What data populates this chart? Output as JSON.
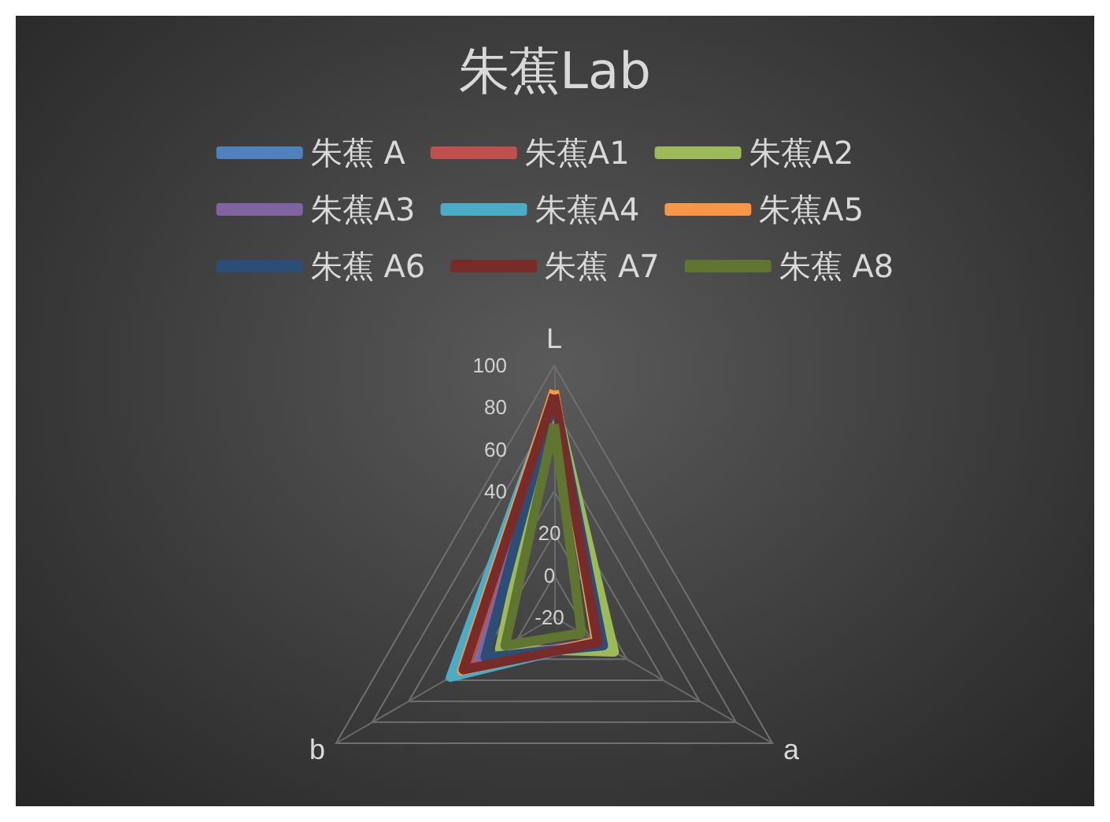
{
  "chart_data": {
    "type": "radar",
    "title": "朱蕉Lab",
    "categories": [
      "L",
      "a",
      "b"
    ],
    "ylim": [
      -20,
      100
    ],
    "yticks": [
      -20,
      0,
      20,
      40,
      60,
      80,
      100
    ],
    "legend": "top",
    "marker": "none",
    "grid": true,
    "series": [
      {
        "name": "朱蕉 A",
        "color": "#4f81bd",
        "values": [
          85,
          5,
          23
        ]
      },
      {
        "name": "朱蕉A1",
        "color": "#c0504d",
        "values": [
          87,
          4,
          28
        ]
      },
      {
        "name": "朱蕉A2",
        "color": "#9bbb59",
        "values": [
          84,
          13,
          10
        ]
      },
      {
        "name": "朱蕉A3",
        "color": "#8064a2",
        "values": [
          84,
          4,
          20
        ]
      },
      {
        "name": "朱蕉A4",
        "color": "#4bacc6",
        "values": [
          86,
          3,
          37
        ]
      },
      {
        "name": "朱蕉A5",
        "color": "#f79646",
        "values": [
          88,
          3,
          31
        ]
      },
      {
        "name": "朱蕉 A6",
        "color": "#2c4d75",
        "values": [
          85,
          7,
          18
        ]
      },
      {
        "name": "朱蕉 A7",
        "color": "#772c2a",
        "values": [
          86,
          4,
          30
        ]
      },
      {
        "name": "朱蕉 A8",
        "color": "#5f7530",
        "values": [
          72,
          -5,
          7
        ]
      }
    ]
  }
}
